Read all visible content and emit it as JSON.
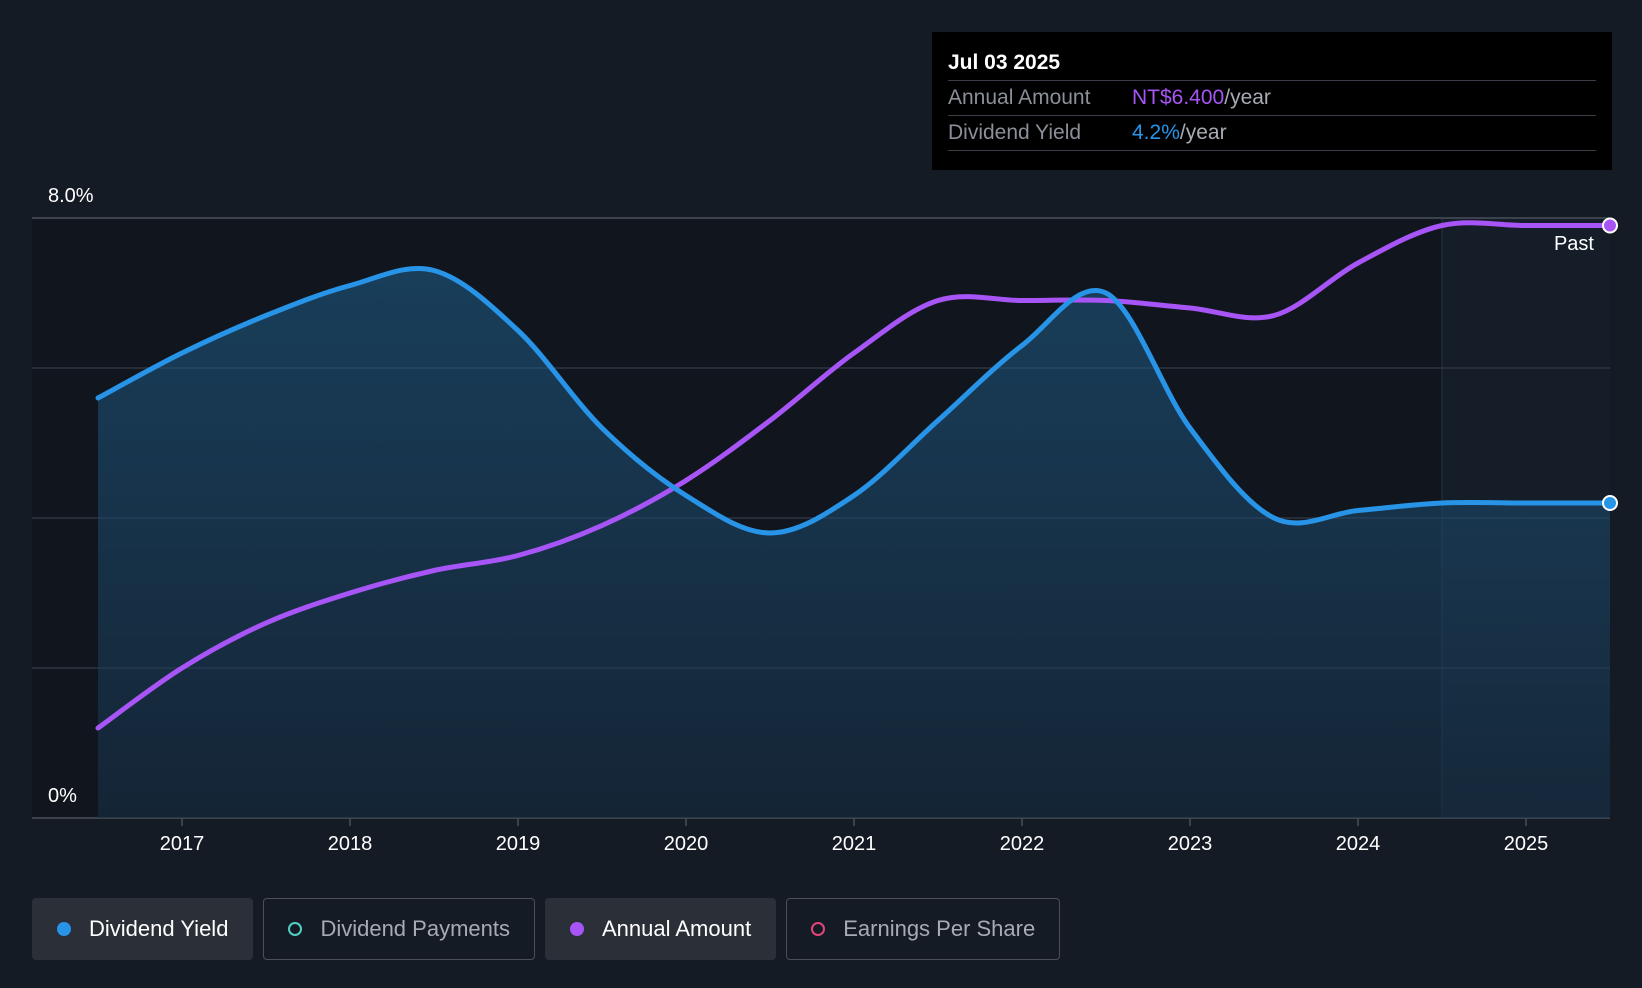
{
  "tooltip": {
    "date": "Jul 03 2025",
    "rows": [
      {
        "label": "Annual Amount",
        "value": "NT$6.400",
        "unit": "/year"
      },
      {
        "label": "Dividend Yield",
        "value": "4.2%",
        "unit": "/year"
      }
    ]
  },
  "past_label": "Past",
  "legend": [
    {
      "label": "Dividend Yield",
      "color": "#2894e8",
      "active": true,
      "filled": true
    },
    {
      "label": "Dividend Payments",
      "color": "#4fd1c5",
      "active": false,
      "filled": false
    },
    {
      "label": "Annual Amount",
      "color": "#a855f7",
      "active": true,
      "filled": true
    },
    {
      "label": "Earnings Per Share",
      "color": "#e0457b",
      "active": false,
      "filled": false
    }
  ],
  "colors": {
    "background": "#151b24",
    "yield_line": "#2894e8",
    "annual_line": "#a855f7",
    "grid": "#2e3540"
  },
  "chart_data": {
    "type": "line",
    "xlabel": "",
    "ylabel": "",
    "y_tick_labels": [
      "8.0%",
      "0%"
    ],
    "ylim": [
      0,
      8
    ],
    "xlim": [
      2016.1,
      2025.5
    ],
    "x_ticks": [
      2017,
      2018,
      2019,
      2020,
      2021,
      2022,
      2023,
      2024,
      2025
    ],
    "grid": true,
    "past_region_start": 2024.5,
    "series": [
      {
        "name": "Dividend Yield",
        "x": [
          2016.5,
          2017.0,
          2017.5,
          2018.0,
          2018.5,
          2019.0,
          2019.5,
          2020.0,
          2020.5,
          2021.0,
          2021.5,
          2022.0,
          2022.5,
          2023.0,
          2023.5,
          2024.0,
          2024.5,
          2025.0,
          2025.5
        ],
        "values": [
          5.6,
          6.2,
          6.7,
          7.1,
          7.3,
          6.5,
          5.2,
          4.3,
          3.8,
          4.3,
          5.3,
          6.3,
          7.0,
          5.2,
          4.0,
          4.1,
          4.2,
          4.2,
          4.2
        ]
      },
      {
        "name": "Annual Amount",
        "x": [
          2016.5,
          2017.0,
          2017.5,
          2018.0,
          2018.5,
          2019.0,
          2019.5,
          2020.0,
          2020.5,
          2021.0,
          2021.5,
          2022.0,
          2022.5,
          2023.0,
          2023.5,
          2024.0,
          2024.5,
          2025.0,
          2025.5
        ],
        "values": [
          1.2,
          2.0,
          2.6,
          3.0,
          3.3,
          3.5,
          3.9,
          4.5,
          5.3,
          6.2,
          6.9,
          6.9,
          6.9,
          6.8,
          6.7,
          7.4,
          7.9,
          7.9,
          7.9
        ]
      }
    ]
  }
}
